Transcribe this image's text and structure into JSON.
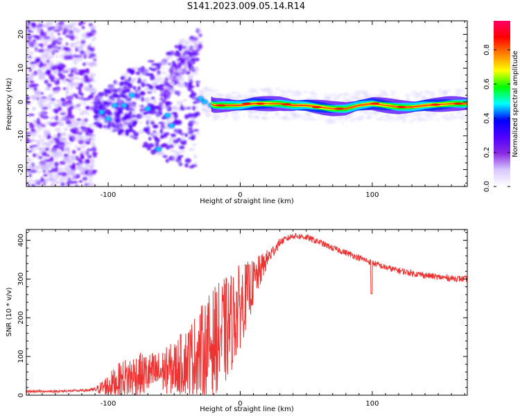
{
  "title": "S141.2023.009.05.14.R14",
  "colors": {
    "snr_line": "#ee3333",
    "scatter": "#6a00ff",
    "colorbar": [
      "#ffffff",
      "#d8c8ff",
      "#8a2be2",
      "#5000ff",
      "#0000ff",
      "#00ffff",
      "#00ff00",
      "#ffff00",
      "#ff8000",
      "#ff0000",
      "#ff0066"
    ]
  },
  "chart_data": [
    {
      "type": "heatmap",
      "xlabel": "Height of straight line (km)",
      "ylabel": "Frequency (Hz)",
      "xlim": [
        -162,
        172
      ],
      "ylim": [
        -25,
        24
      ],
      "xticks": [
        {
          "v": -100,
          "t": "-100"
        },
        {
          "v": 0,
          "t": "0"
        },
        {
          "v": 100,
          "t": "100"
        }
      ],
      "yticks": [
        {
          "v": -20,
          "t": "-20"
        },
        {
          "v": -10,
          "t": "-10"
        },
        {
          "v": 0,
          "t": "0"
        },
        {
          "v": 10,
          "t": "10"
        },
        {
          "v": 20,
          "t": "20"
        }
      ],
      "ridge": {
        "x": [
          -160,
          -140,
          -120,
          -110,
          -100,
          -90,
          -80,
          -70,
          -60,
          -50,
          -40,
          -30,
          -20,
          -10,
          0,
          10,
          20,
          30,
          40,
          50,
          60,
          70,
          80,
          90,
          100,
          110,
          120,
          130,
          140,
          150,
          160,
          172
        ],
        "y": [
          -3,
          -2,
          -1,
          -3,
          -2,
          -1,
          0,
          -1,
          -2,
          -1,
          0,
          1,
          -1,
          -1,
          -1,
          -0.5,
          -0.5,
          -0.5,
          -1,
          -1,
          -1.5,
          -2,
          -2,
          -1,
          -0.5,
          -1,
          -1.5,
          -1.5,
          -1,
          -0.8,
          -0.5,
          -0.5
        ]
      },
      "colorbar": {
        "label": "Normalized spectral amplitude",
        "range": [
          0,
          0.97
        ],
        "ticks": [
          {
            "v": 0,
            "t": "0.0"
          },
          {
            "v": 0.2,
            "t": "0.2"
          },
          {
            "v": 0.4,
            "t": "0.4"
          },
          {
            "v": 0.6,
            "t": "0.6"
          },
          {
            "v": 0.8,
            "t": "0.8"
          }
        ]
      }
    },
    {
      "type": "line",
      "xlabel": "Height of straight line (km)",
      "ylabel": "SNR (10 * v/v)",
      "xlim": [
        -162,
        172
      ],
      "ylim": [
        0,
        428
      ],
      "xticks": [
        {
          "v": -100,
          "t": "-100"
        },
        {
          "v": 0,
          "t": "0"
        },
        {
          "v": 100,
          "t": "100"
        }
      ],
      "yticks": [
        {
          "v": 0,
          "t": "0"
        },
        {
          "v": 100,
          "t": "100"
        },
        {
          "v": 200,
          "t": "200"
        },
        {
          "v": 300,
          "t": "300"
        },
        {
          "v": 400,
          "t": "400"
        }
      ],
      "envelope": {
        "x": [
          -162,
          -140,
          -120,
          -110,
          -100,
          -90,
          -80,
          -70,
          -60,
          -50,
          -40,
          -30,
          -20,
          -10,
          0,
          10,
          20,
          30,
          40,
          50,
          60,
          70,
          80,
          90,
          100,
          110,
          120,
          130,
          140,
          150,
          160,
          172
        ],
        "mean": [
          10,
          10,
          12,
          14,
          25,
          40,
          50,
          55,
          60,
          70,
          90,
          110,
          140,
          170,
          230,
          290,
          350,
          395,
          412,
          408,
          395,
          380,
          368,
          355,
          342,
          330,
          322,
          315,
          310,
          305,
          302,
          300
        ],
        "spread": [
          3,
          3,
          3,
          6,
          30,
          50,
          60,
          55,
          55,
          70,
          90,
          120,
          140,
          140,
          110,
          60,
          25,
          10,
          8,
          8,
          8,
          8,
          8,
          8,
          8,
          8,
          8,
          8,
          8,
          8,
          8,
          8
        ]
      }
    }
  ]
}
